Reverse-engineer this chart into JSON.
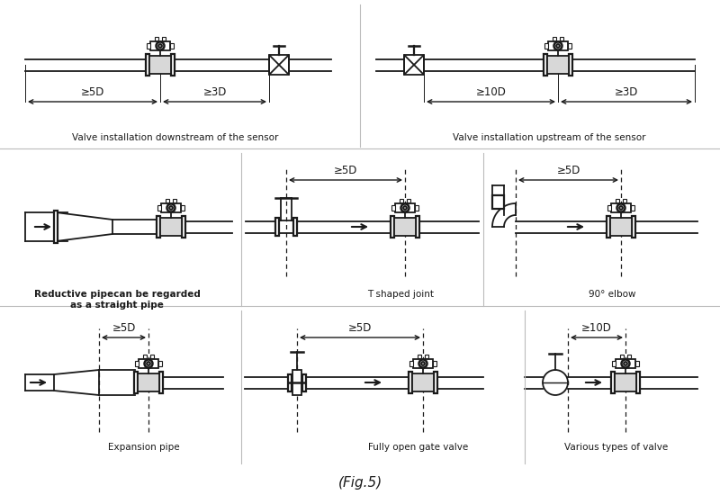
{
  "bg_color": "#ffffff",
  "line_color": "#1a1a1a",
  "title": "(Fig.5)",
  "labels": {
    "d1": "Valve installation downstream of the sensor",
    "d2": "Valve installation upstream of the sensor",
    "d3": "Reductive pipecan be regarded\nas a straight pipe",
    "d4": "T shaped joint",
    "d5": "90° elbow",
    "d6": "Expansion pipe",
    "d7": "Fully open gate valve",
    "d8": "Various types of valve"
  },
  "dims": {
    "5D": "≥5D",
    "3D": "≥3D",
    "10D": "≥10D"
  }
}
